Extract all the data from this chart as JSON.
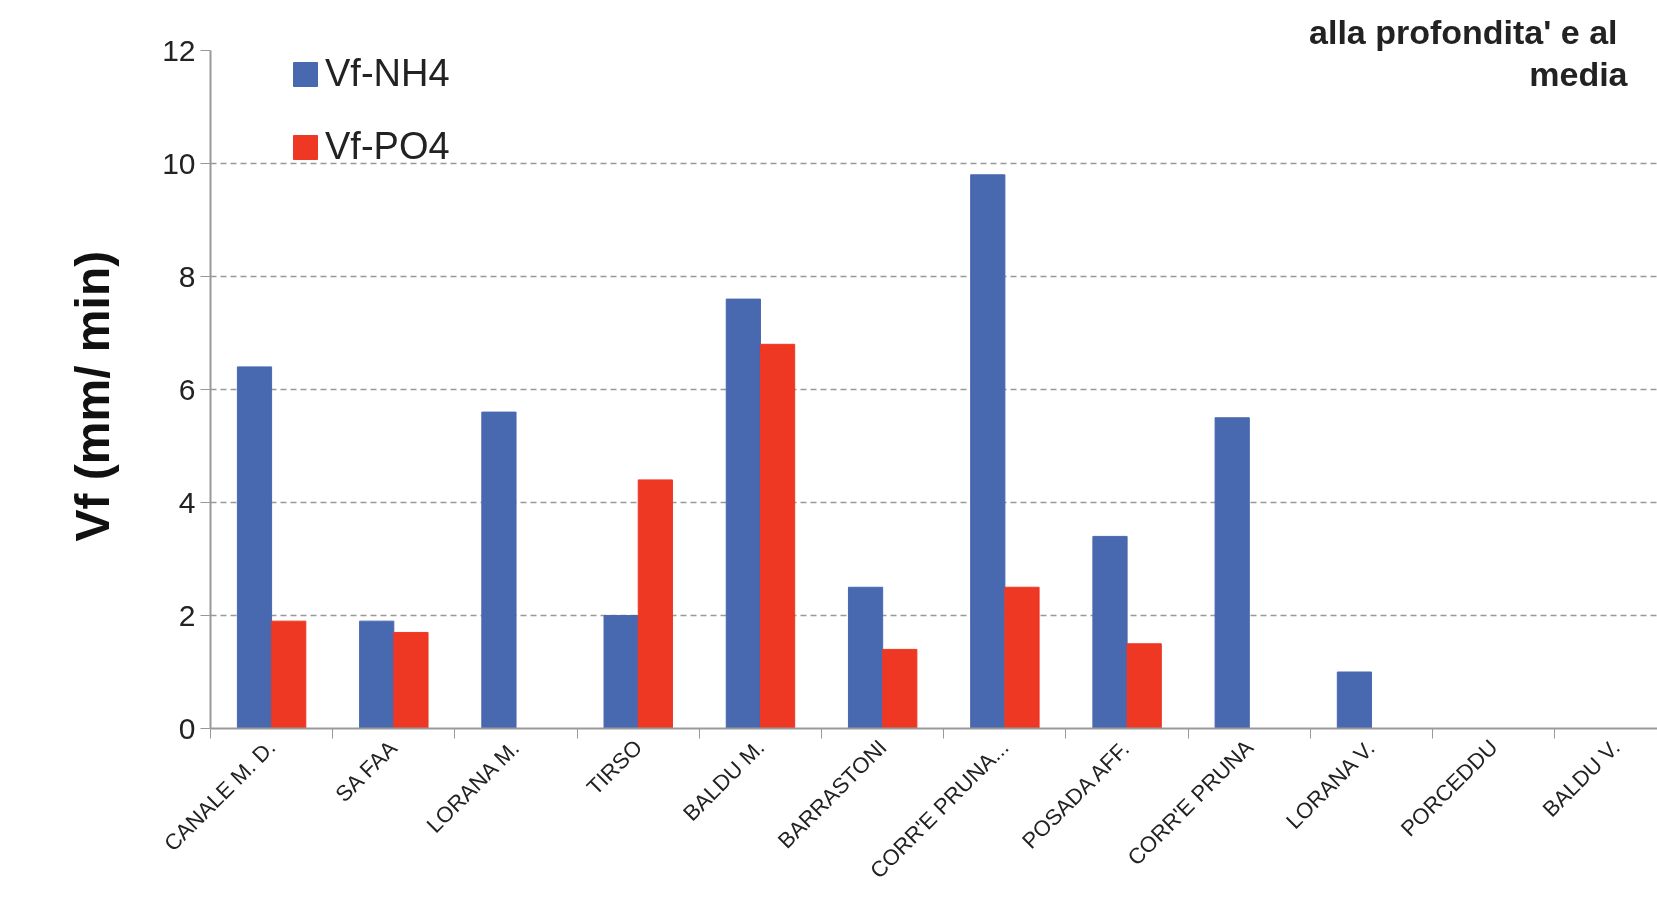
{
  "chart_data": {
    "type": "bar",
    "annotations": [
      "alla profondita' e al",
      "media"
    ],
    "ylabel": "Vf  (mm/ min)",
    "categories": [
      "CANALE M. D.",
      "SA FAA",
      "LORANA M.",
      "TIRSO",
      "BALDU M.",
      "BARRASTONI",
      "CORR'E PRUNA...",
      "POSADA AFF.",
      "CORR'E PRUNA",
      "LORANA V.",
      "PORCEDDU",
      "BALDU V."
    ],
    "series": [
      {
        "name": "Vf-NH4",
        "color": "#4868b0",
        "values": [
          6.4,
          1.9,
          5.6,
          2.0,
          7.6,
          2.5,
          9.8,
          3.4,
          5.5,
          1.0,
          null,
          null
        ]
      },
      {
        "name": "Vf-PO4",
        "color": "#ee3824",
        "values": [
          1.9,
          1.7,
          null,
          4.4,
          6.8,
          1.4,
          2.5,
          1.5,
          null,
          null,
          null,
          null
        ]
      }
    ],
    "ylim": [
      0,
      12
    ],
    "yticks": [
      0,
      2,
      4,
      6,
      8,
      10,
      12
    ],
    "grid": "y",
    "legend": "top left"
  }
}
